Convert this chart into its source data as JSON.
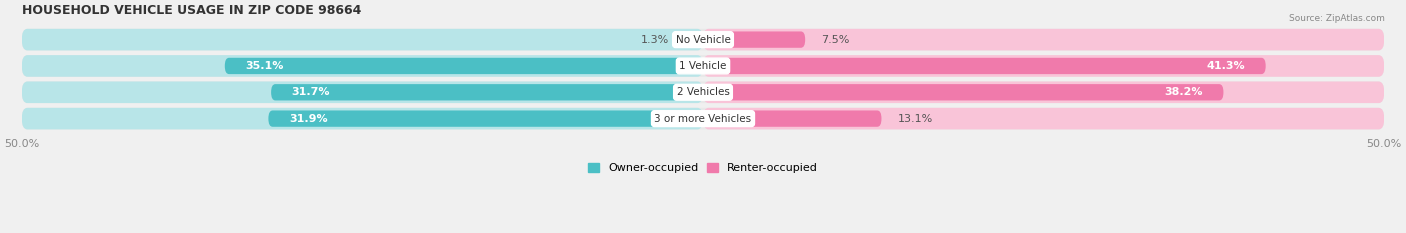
{
  "title": "HOUSEHOLD VEHICLE USAGE IN ZIP CODE 98664",
  "source": "Source: ZipAtlas.com",
  "categories": [
    "No Vehicle",
    "1 Vehicle",
    "2 Vehicles",
    "3 or more Vehicles"
  ],
  "owner_values": [
    1.3,
    35.1,
    31.7,
    31.9
  ],
  "renter_values": [
    7.5,
    41.3,
    38.2,
    13.1
  ],
  "owner_color": "#4bbfc5",
  "renter_color": "#f07aab",
  "owner_color_light": "#b8e5e8",
  "renter_color_light": "#f9c4d8",
  "axis_limit": 50.0,
  "bar_height": 0.62,
  "background_color": "#f0f0f0",
  "row_bg_color": "#e8e8e8",
  "title_fontsize": 9,
  "label_fontsize": 8,
  "tick_fontsize": 8,
  "legend_fontsize": 8,
  "category_fontsize": 7.5,
  "figsize": [
    14.06,
    2.33
  ],
  "dpi": 100
}
